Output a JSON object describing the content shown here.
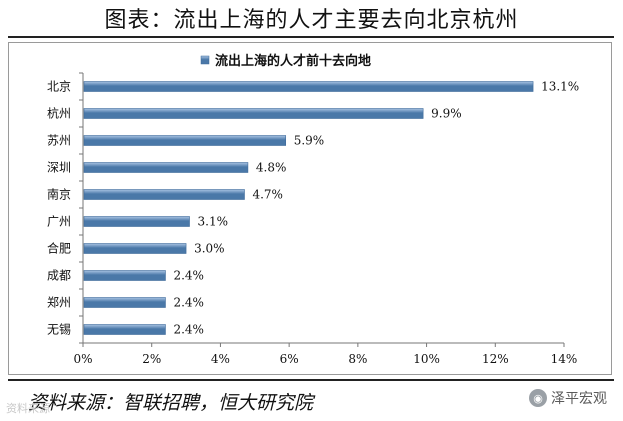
{
  "title": "图表：流出上海的人才主要去向北京杭州",
  "source": "资料来源：智联招聘，恒大研究院",
  "watermark": "资料来源",
  "brand": {
    "name": "泽平宏观",
    "icon": "wechat-icon"
  },
  "chart_data": {
    "type": "bar",
    "orientation": "horizontal",
    "legend": {
      "placement": "top-center"
    },
    "series": [
      {
        "name": "流出上海的人才前十去向地",
        "values": [
          13.1,
          9.9,
          5.9,
          4.8,
          4.7,
          3.1,
          3.0,
          2.4,
          2.4,
          2.4
        ]
      }
    ],
    "categories": [
      "北京",
      "杭州",
      "苏州",
      "深圳",
      "南京",
      "广州",
      "合肥",
      "成都",
      "郑州",
      "无锡"
    ],
    "value_labels": [
      "13.1%",
      "9.9%",
      "5.9%",
      "4.8%",
      "4.7%",
      "3.1%",
      "3.0%",
      "2.4%",
      "2.4%",
      "2.4%"
    ],
    "xlim": [
      0,
      14
    ],
    "xticks": [
      0,
      2,
      4,
      6,
      8,
      10,
      12,
      14
    ],
    "xtick_labels": [
      "0%",
      "2%",
      "4%",
      "6%",
      "8%",
      "10%",
      "12%",
      "14%"
    ],
    "grid": false,
    "colors": {
      "bar_light": "#a9c4e4",
      "bar_dark": "#4a78a8",
      "bar_stroke": "#3e6a9a"
    }
  }
}
